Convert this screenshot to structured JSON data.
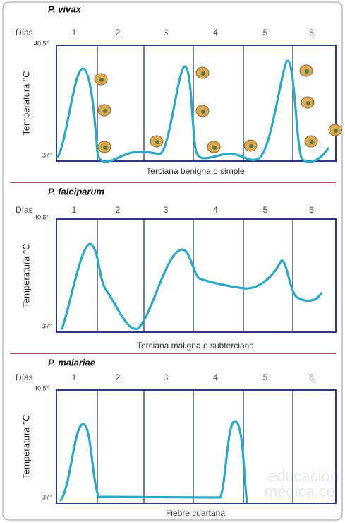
{
  "panels": [
    {
      "title": "P. vivax",
      "days_label": "Días",
      "days": [
        "1",
        "2",
        "3",
        "4",
        "5",
        "6"
      ],
      "y_top": "40.5°",
      "y_bottom": "37°",
      "y_label": "Temperatura °C",
      "caption": "Terciana benigna o simple"
    },
    {
      "title": "P. falciparum",
      "days_label": "Días",
      "days": [
        "1",
        "2",
        "3",
        "4",
        "5",
        "6"
      ],
      "y_top": "40.5°",
      "y_bottom": "37°",
      "y_label": "Temperatura °C",
      "caption": "Terciana maligna o subterciana"
    },
    {
      "title": "P. malariae",
      "days_label": "Días",
      "days": [
        "1",
        "2",
        "3",
        "4",
        "5",
        "6"
      ],
      "y_top": "40.5°",
      "y_bottom": "37°",
      "y_label": "Temperatura °C",
      "caption": "Fiebre cuartana"
    }
  ],
  "watermark": {
    "line1": "educación",
    "line2": "médica.co"
  }
}
